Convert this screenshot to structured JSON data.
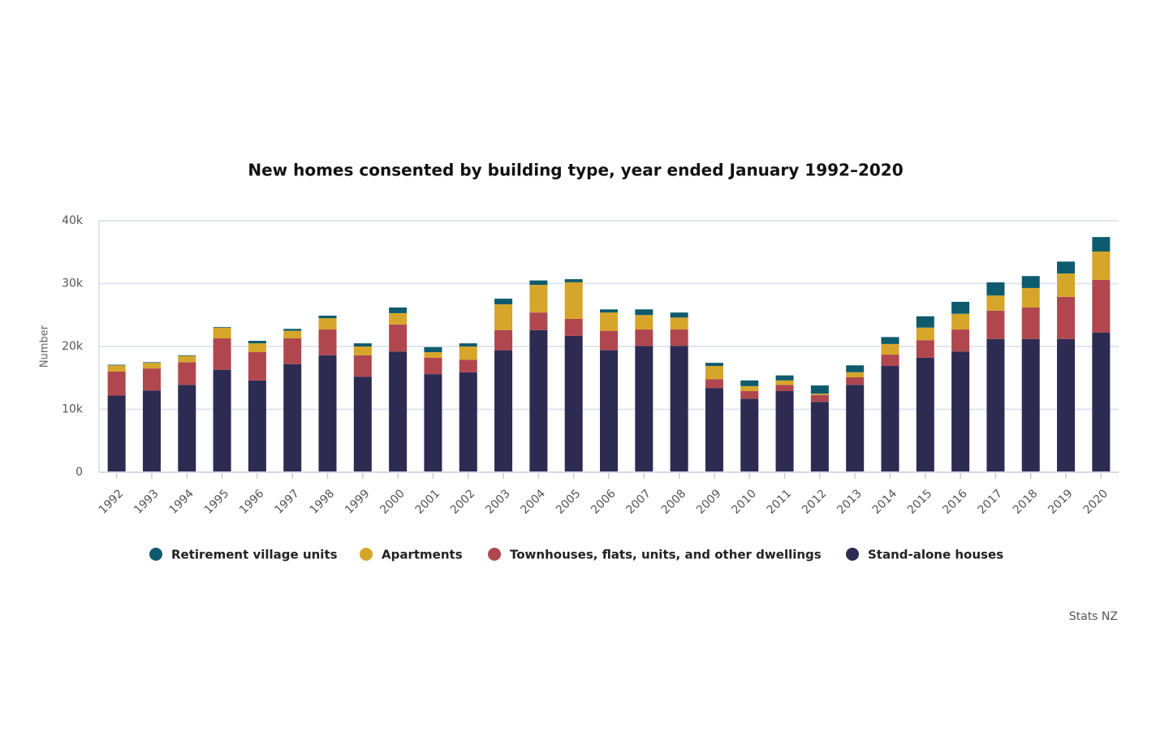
{
  "chart_data": {
    "type": "stacked_bar",
    "title": "New homes consented by building type, year ended January 1992–2020",
    "y_label": "Number",
    "source": "Stats NZ",
    "categories": [
      "1992",
      "1993",
      "1994",
      "1995",
      "1996",
      "1997",
      "1998",
      "1999",
      "2000",
      "2001",
      "2002",
      "2003",
      "2004",
      "2005",
      "2006",
      "2007",
      "2008",
      "2009",
      "2010",
      "2011",
      "2012",
      "2013",
      "2014",
      "2015",
      "2016",
      "2017",
      "2018",
      "2019",
      "2020"
    ],
    "series": [
      {
        "name": "Retirement village units",
        "color": "#0f5b6e",
        "values": [
          100,
          100,
          100,
          100,
          400,
          300,
          400,
          500,
          900,
          800,
          500,
          900,
          700,
          500,
          500,
          900,
          800,
          500,
          900,
          800,
          1300,
          1100,
          1100,
          1800,
          1900,
          2100,
          1900,
          1900,
          2300
        ]
      },
      {
        "name": "Apartments",
        "color": "#d6a62a",
        "values": [
          1000,
          900,
          1000,
          1700,
          1400,
          1200,
          1800,
          1400,
          1800,
          900,
          2100,
          4100,
          4400,
          5800,
          2900,
          2300,
          1900,
          2100,
          800,
          700,
          200,
          800,
          1700,
          2000,
          2500,
          2400,
          3100,
          3700,
          4500
        ]
      },
      {
        "name": "Townhouses, flats, units, and other dwellings",
        "color": "#b0474f",
        "values": [
          3800,
          3500,
          3600,
          5000,
          4500,
          4100,
          4100,
          3400,
          4300,
          2600,
          2000,
          3200,
          2800,
          2700,
          3100,
          2600,
          2600,
          1400,
          1200,
          1000,
          1100,
          1200,
          1800,
          2800,
          3500,
          4500,
          5000,
          6700,
          8400
        ]
      },
      {
        "name": "Stand-alone houses",
        "color": "#2d2b52",
        "values": [
          12200,
          13000,
          13900,
          16300,
          14600,
          17200,
          18600,
          15200,
          19200,
          15600,
          15900,
          19400,
          22600,
          21700,
          19400,
          20100,
          20100,
          13400,
          11700,
          12900,
          11200,
          13900,
          16900,
          18200,
          19200,
          21200,
          21200,
          21200,
          22200
        ]
      }
    ],
    "ylim": [
      0,
      40000
    ],
    "yticks": [
      0,
      {
        "value": 10000,
        "label": "10k"
      },
      {
        "value": 20000,
        "label": "20k"
      },
      {
        "value": 30000,
        "label": "30k"
      },
      {
        "value": 40000,
        "label": "40k"
      }
    ],
    "grid": true
  }
}
